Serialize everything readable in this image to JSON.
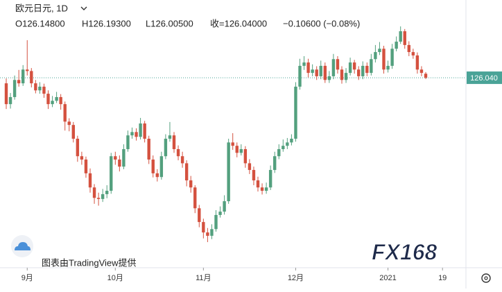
{
  "chart_data": {
    "type": "candlestick",
    "title": "欧元日元, 1D",
    "legend": {
      "open": "O126.14800",
      "high": "H126.19300",
      "low": "L126.00500",
      "close": "收=126.04000",
      "change": "−0.10600 (−0.08%)"
    },
    "categories": [
      null,
      null,
      null,
      null,
      null,
      "9月",
      null,
      null,
      null,
      null,
      null,
      null,
      null,
      null,
      null,
      null,
      null,
      null,
      null,
      null,
      null,
      null,
      null,
      null,
      null,
      null,
      "10月",
      null,
      null,
      null,
      null,
      null,
      null,
      null,
      null,
      null,
      null,
      null,
      null,
      null,
      null,
      null,
      null,
      null,
      null,
      null,
      null,
      "11月",
      null,
      null,
      null,
      null,
      null,
      null,
      null,
      null,
      null,
      null,
      null,
      null,
      null,
      null,
      null,
      null,
      null,
      null,
      null,
      null,
      null,
      "12月",
      null,
      null,
      null,
      null,
      null,
      null,
      null,
      null,
      null,
      null,
      null,
      null,
      null,
      null,
      null,
      null,
      null,
      null,
      null,
      null,
      null,
      "2021",
      null,
      null,
      null,
      null,
      null,
      null,
      null,
      null,
      null,
      null,
      null,
      null,
      "19",
      null,
      null
    ],
    "open": [
      125.89,
      125.33,
      125.52,
      125.98,
      125.89,
      126.26,
      126.22,
      125.89,
      125.7,
      125.8,
      125.61,
      125.33,
      125.42,
      125.52,
      125.33,
      124.86,
      124.77,
      124.4,
      123.93,
      123.84,
      123.47,
      123.09,
      122.81,
      122.78,
      122.91,
      123.0,
      123.93,
      123.84,
      123.65,
      124.12,
      124.49,
      124.58,
      124.45,
      124.81,
      124.4,
      123.84,
      123.47,
      123.37,
      123.93,
      124.4,
      124.49,
      124.12,
      123.93,
      123.74,
      123.28,
      123.09,
      122.53,
      122.16,
      121.88,
      121.79,
      121.97,
      122.35,
      122.44,
      122.72,
      124.3,
      124.21,
      124.02,
      124.12,
      123.74,
      123.56,
      123.28,
      123.09,
      123.0,
      123.09,
      123.56,
      123.93,
      124.12,
      124.21,
      124.3,
      124.4,
      125.8,
      126.36,
      126.45,
      126.17,
      126.26,
      126.08,
      126.36,
      125.98,
      126.08,
      126.54,
      126.26,
      125.98,
      126.17,
      126.45,
      126.26,
      126.08,
      126.36,
      126.17,
      126.54,
      126.73,
      126.82,
      126.26,
      126.36,
      126.82,
      127.01,
      127.29,
      126.92,
      126.73,
      126.64,
      126.26,
      126.148,
      null,
      null,
      null,
      null,
      null,
      null
    ],
    "high": [
      126.02,
      125.63,
      126.1,
      126.25,
      126.38,
      127.05,
      126.3,
      125.98,
      125.92,
      125.88,
      125.7,
      125.55,
      125.66,
      125.6,
      125.4,
      124.95,
      124.85,
      124.48,
      124.05,
      123.92,
      123.6,
      123.18,
      122.95,
      123.05,
      123.15,
      124.02,
      124.05,
      123.95,
      124.25,
      124.62,
      124.7,
      124.68,
      124.96,
      124.88,
      124.48,
      123.95,
      123.58,
      124.05,
      124.52,
      124.85,
      124.58,
      124.22,
      124.05,
      123.82,
      123.4,
      123.15,
      122.62,
      122.25,
      122.0,
      122.1,
      122.48,
      122.58,
      122.88,
      124.4,
      124.55,
      124.3,
      124.25,
      124.2,
      123.85,
      123.65,
      123.38,
      123.2,
      123.22,
      123.68,
      124.05,
      124.25,
      124.38,
      124.42,
      124.52,
      125.92,
      126.55,
      126.62,
      126.55,
      126.4,
      126.35,
      126.5,
      126.45,
      126.22,
      126.68,
      126.62,
      126.35,
      126.3,
      126.58,
      126.52,
      126.35,
      126.48,
      126.45,
      126.68,
      126.92,
      127.0,
      126.9,
      126.5,
      126.95,
      127.15,
      127.42,
      127.35,
      127.02,
      126.82,
      126.72,
      126.35,
      126.193,
      null,
      null,
      null,
      null,
      null,
      null
    ],
    "low": [
      125.2,
      125.21,
      125.45,
      125.8,
      125.82,
      126.1,
      125.78,
      125.62,
      125.61,
      125.5,
      125.2,
      125.25,
      125.36,
      125.18,
      124.62,
      124.6,
      124.3,
      123.78,
      123.7,
      123.35,
      122.95,
      122.65,
      122.6,
      122.7,
      122.8,
      122.92,
      123.7,
      123.52,
      123.58,
      124.05,
      124.4,
      124.35,
      124.38,
      124.3,
      123.72,
      123.36,
      123.25,
      123.3,
      123.85,
      124.32,
      124.02,
      123.82,
      123.62,
      123.12,
      122.95,
      122.4,
      122.02,
      121.72,
      121.62,
      121.7,
      121.9,
      122.28,
      122.36,
      122.65,
      124.1,
      123.9,
      123.95,
      123.62,
      123.45,
      123.15,
      122.98,
      122.9,
      122.92,
      123.02,
      123.48,
      123.85,
      124.05,
      124.12,
      124.22,
      124.32,
      125.72,
      126.25,
      126.05,
      126.08,
      125.98,
      126.0,
      125.9,
      125.9,
      126.0,
      126.15,
      125.88,
      125.9,
      126.1,
      126.15,
      125.98,
      126.0,
      126.08,
      126.1,
      126.45,
      126.65,
      126.15,
      126.18,
      126.28,
      126.75,
      126.95,
      126.82,
      126.62,
      126.55,
      126.15,
      126.08,
      126.005,
      null,
      null,
      null,
      null,
      null,
      null
    ],
    "close": [
      125.33,
      125.52,
      125.98,
      125.89,
      126.26,
      126.22,
      125.89,
      125.7,
      125.8,
      125.61,
      125.33,
      125.42,
      125.52,
      125.33,
      124.86,
      124.77,
      124.4,
      123.93,
      123.84,
      123.47,
      123.09,
      122.81,
      122.78,
      122.91,
      123.0,
      123.93,
      123.84,
      123.65,
      124.12,
      124.49,
      124.58,
      124.45,
      124.81,
      124.4,
      123.84,
      123.47,
      123.37,
      123.93,
      124.4,
      124.49,
      124.12,
      123.93,
      123.74,
      123.28,
      123.09,
      122.53,
      122.16,
      121.88,
      121.79,
      121.97,
      122.35,
      122.44,
      122.72,
      124.3,
      124.21,
      124.02,
      124.12,
      123.74,
      123.56,
      123.28,
      123.09,
      123.0,
      123.09,
      123.56,
      123.93,
      124.12,
      124.21,
      124.3,
      124.4,
      125.8,
      126.36,
      126.45,
      126.17,
      126.26,
      126.08,
      126.36,
      125.98,
      126.08,
      126.54,
      126.26,
      125.98,
      126.17,
      126.45,
      126.26,
      126.08,
      126.36,
      126.17,
      126.54,
      126.73,
      126.82,
      126.26,
      126.36,
      126.82,
      127.01,
      127.29,
      126.92,
      126.73,
      126.64,
      126.26,
      126.17,
      126.04,
      null,
      null,
      null,
      null,
      null,
      null
    ],
    "up_color": "#53a07e",
    "down_color": "#d4513f",
    "ylim": [
      120.95,
      128.13
    ],
    "last_price": {
      "value": 126.04,
      "label": "126.040"
    }
  },
  "attribution": "图表由TradingView提供",
  "watermark": "FX168"
}
